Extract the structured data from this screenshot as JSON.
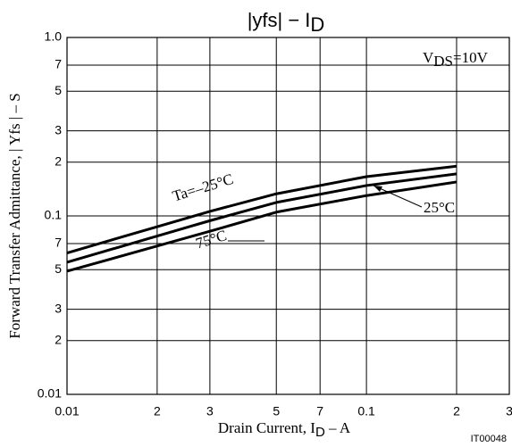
{
  "chart_data": {
    "type": "line",
    "title": "|yfs|  −  I",
    "title_subscript": "D",
    "x_label": "Drain Current, I",
    "x_label_subscript": "D",
    "x_label_rest": "  –  A",
    "y_label": "Forward Transfer Admittance, | Yfs |  –  S",
    "condition": {
      "text": "V",
      "subscript": "DS",
      "rest": "=10V"
    },
    "figure_code": "IT00048",
    "log_scale": true,
    "grid": true,
    "x": [
      0.01,
      0.03,
      0.05,
      0.1,
      0.2
    ],
    "series": [
      {
        "name": "Ta=–25°C",
        "color": "#000000",
        "values": [
          0.062,
          0.106,
          0.133,
          0.166,
          0.19
        ]
      },
      {
        "name": "25°C",
        "color": "#000000",
        "values": [
          0.055,
          0.094,
          0.119,
          0.148,
          0.172
        ]
      },
      {
        "name": "75°C",
        "color": "#000000",
        "values": [
          0.049,
          0.082,
          0.105,
          0.13,
          0.155
        ]
      }
    ],
    "xlim": [
      0.01,
      0.3
    ],
    "xticks": [
      0.01,
      {
        "value": 0.02,
        "label": "2"
      },
      {
        "value": 0.03,
        "label": "3"
      },
      {
        "value": 0.05,
        "label": "5"
      },
      {
        "value": 0.07,
        "label": "7"
      },
      0.1,
      {
        "value": 0.2,
        "label": "2"
      },
      {
        "value": 0.3,
        "label": "3"
      }
    ],
    "ylim": [
      0.01,
      1.0
    ],
    "yticks": [
      0.01,
      {
        "value": 0.02,
        "label": "2"
      },
      {
        "value": 0.03,
        "label": "3"
      },
      {
        "value": 0.05,
        "label": "5"
      },
      {
        "value": 0.07,
        "label": "7"
      },
      0.1,
      {
        "value": 0.2,
        "label": "2"
      },
      {
        "value": 0.3,
        "label": "3"
      },
      {
        "value": 0.5,
        "label": "5"
      },
      {
        "value": 0.7,
        "label": "7"
      },
      {
        "value": 1.0,
        "label": "1.0"
      }
    ]
  }
}
